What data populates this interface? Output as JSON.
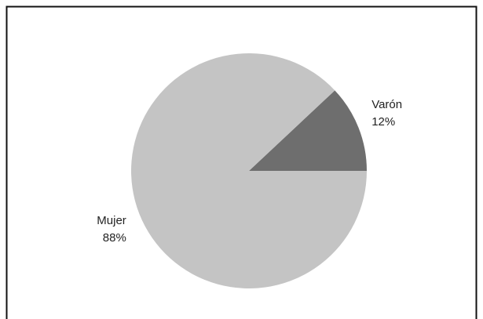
{
  "chart_data": {
    "type": "pie",
    "categories": [
      "Varón",
      "Mujer"
    ],
    "values": [
      12,
      88
    ],
    "value_labels": [
      "12%",
      "88%"
    ],
    "colors": [
      "#6e6e6e",
      "#c4c4c4"
    ]
  }
}
